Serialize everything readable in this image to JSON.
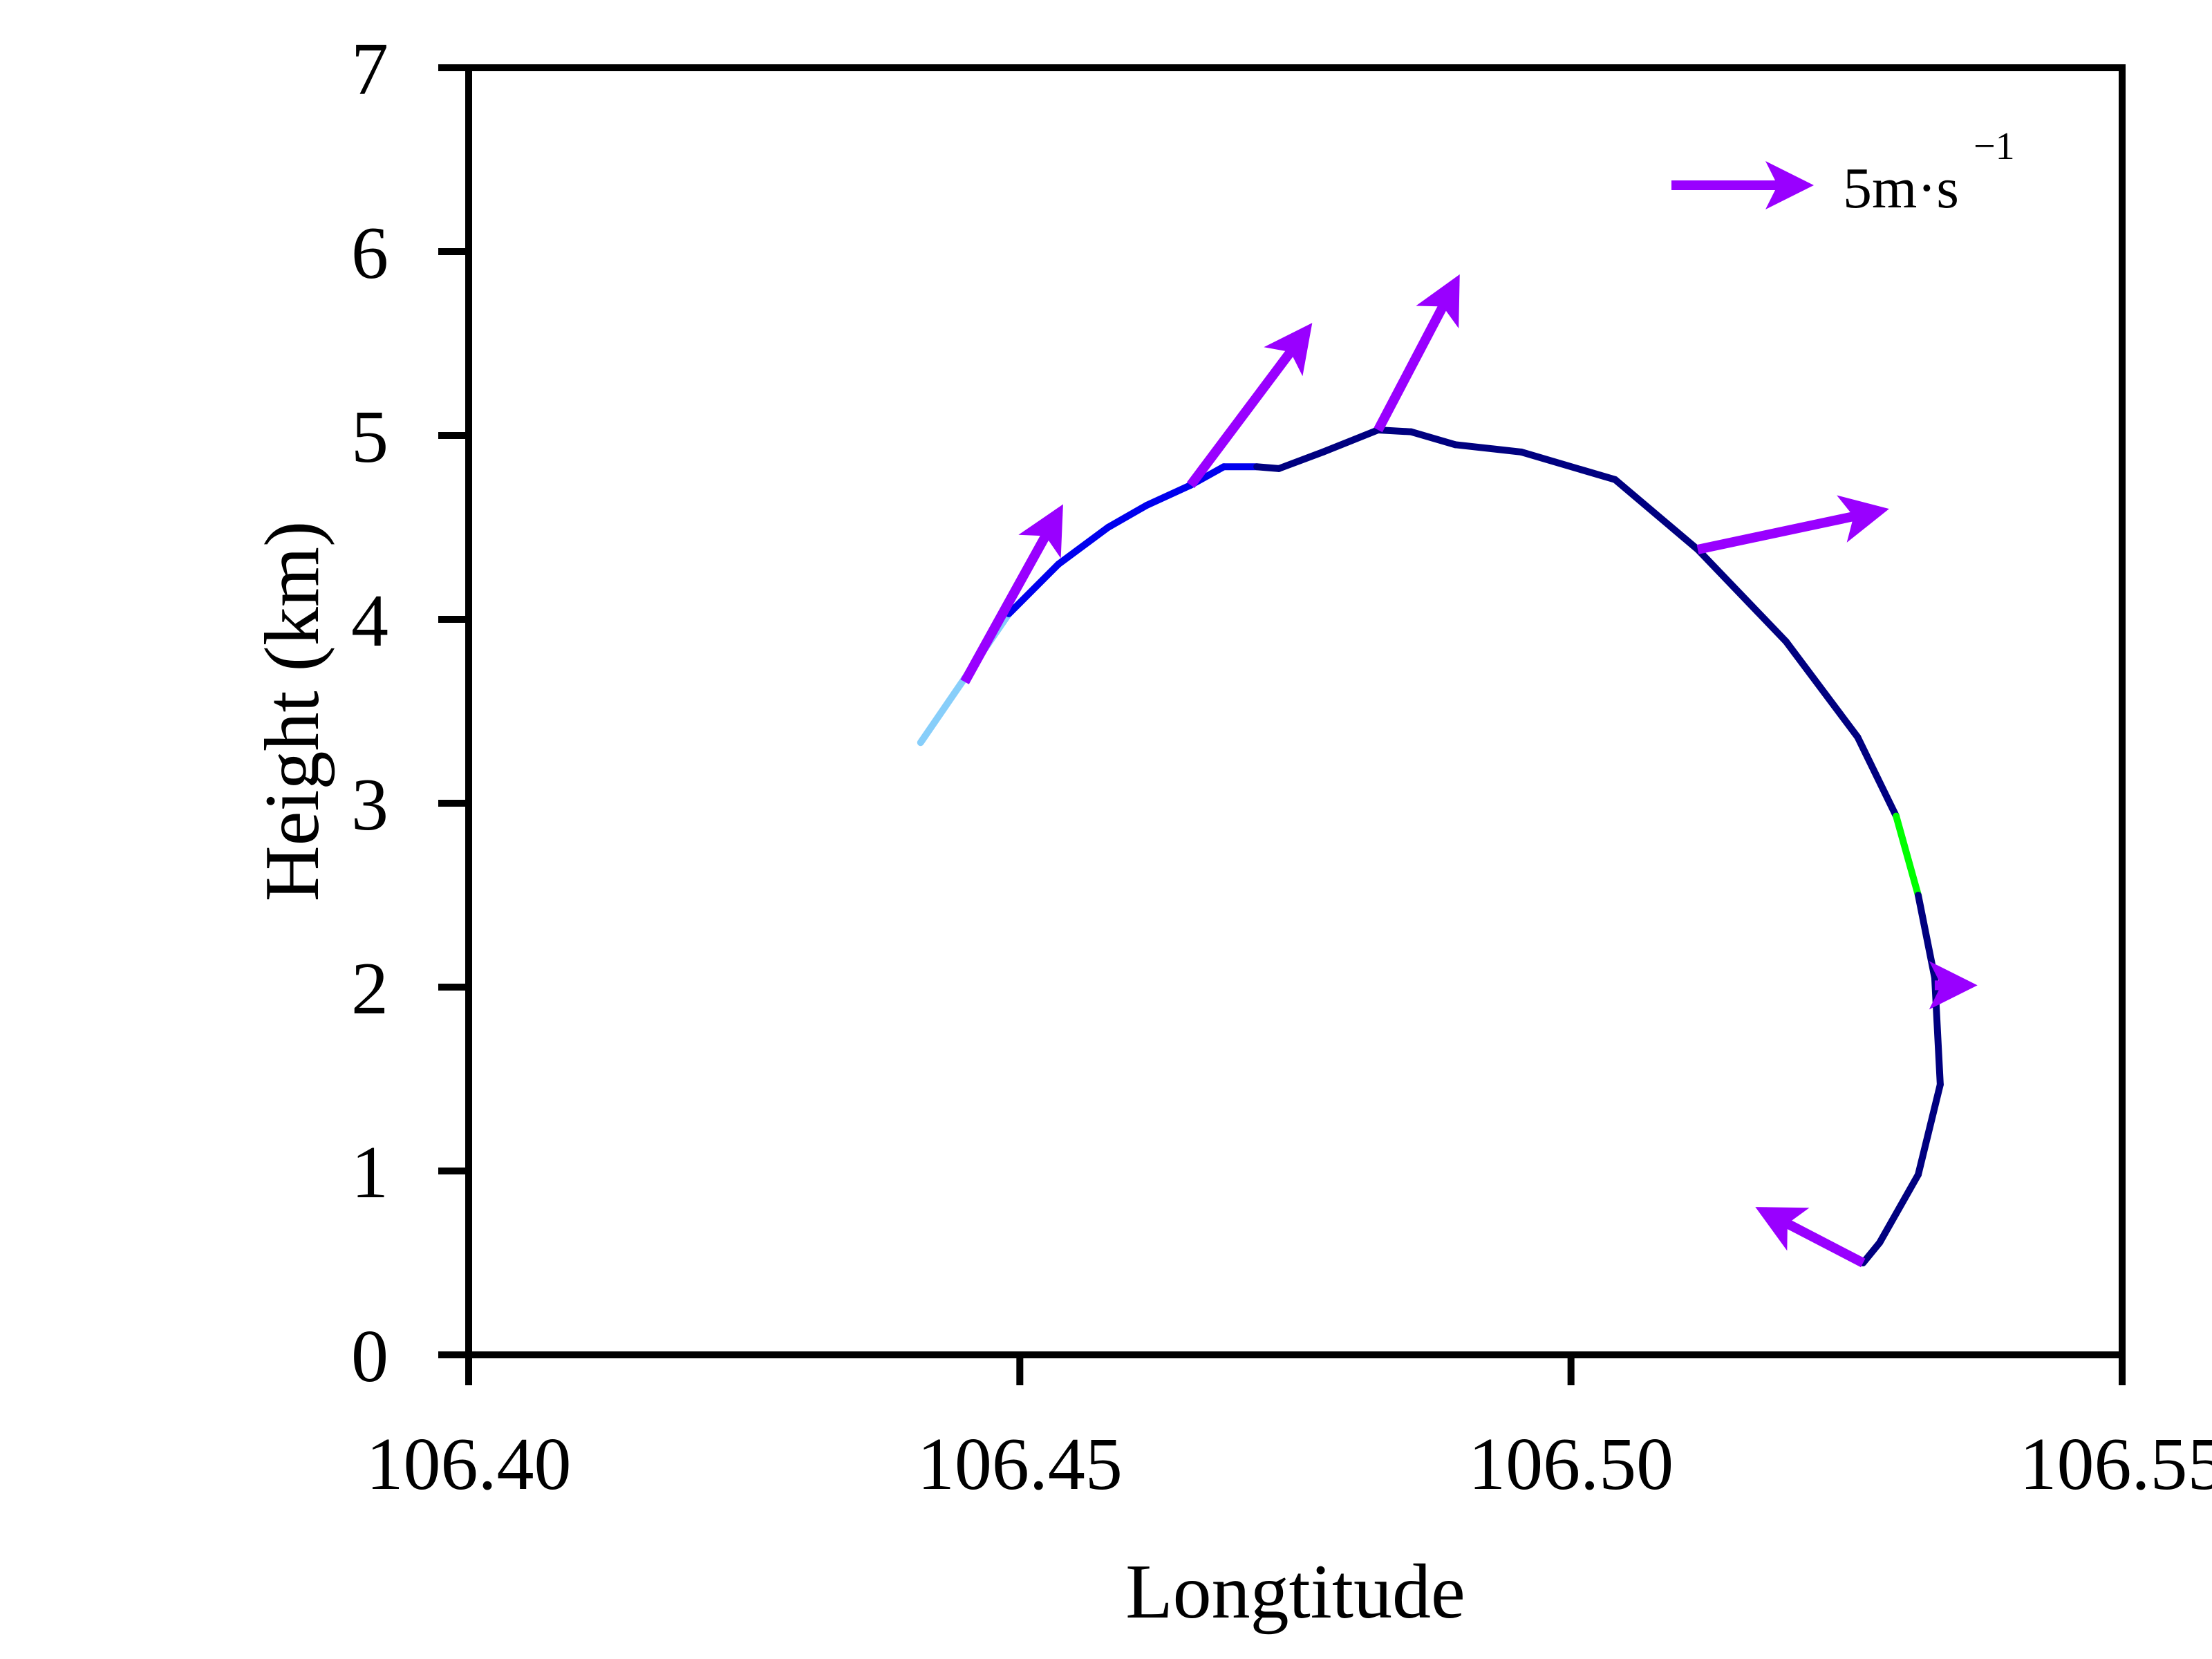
{
  "chart_data": {
    "type": "line",
    "title": "",
    "xlabel": "Longtitude",
    "ylabel": "Height (km)",
    "xlim": [
      106.4,
      106.55
    ],
    "ylim": [
      0,
      7
    ],
    "x_ticks": [
      "106.40",
      "106.45",
      "106.50",
      "106.55"
    ],
    "y_ticks": [
      "0",
      "1",
      "2",
      "3",
      "4",
      "5",
      "6",
      "7"
    ],
    "grid": false,
    "legend": {
      "position": "top-right",
      "label": "5m·s",
      "superscript": "−1",
      "arrow_color": "#9900ff"
    },
    "trajectory": [
      {
        "x": 106.441,
        "y": 3.33,
        "color": "#87cefa"
      },
      {
        "x": 106.445,
        "y": 3.68,
        "color": "#87cefa"
      },
      {
        "x": 106.449,
        "y": 4.03,
        "color": "#87cefa"
      },
      {
        "x": 106.4535,
        "y": 4.3,
        "color": "#0000ee"
      },
      {
        "x": 106.458,
        "y": 4.5,
        "color": "#0000ee"
      },
      {
        "x": 106.4615,
        "y": 4.62,
        "color": "#0000ee"
      },
      {
        "x": 106.4655,
        "y": 4.73,
        "color": "#0000ee"
      },
      {
        "x": 106.4685,
        "y": 4.83,
        "color": "#0000ee"
      },
      {
        "x": 106.4715,
        "y": 4.83,
        "color": "#0000ee"
      },
      {
        "x": 106.4735,
        "y": 4.82,
        "color": "#000080"
      },
      {
        "x": 106.4775,
        "y": 4.91,
        "color": "#000080"
      },
      {
        "x": 106.4825,
        "y": 5.03,
        "color": "#000080"
      },
      {
        "x": 106.4855,
        "y": 5.02,
        "color": "#000080"
      },
      {
        "x": 106.4895,
        "y": 4.95,
        "color": "#000080"
      },
      {
        "x": 106.4955,
        "y": 4.91,
        "color": "#000080"
      },
      {
        "x": 106.504,
        "y": 4.76,
        "color": "#000080"
      },
      {
        "x": 106.5115,
        "y": 4.38,
        "color": "#000080"
      },
      {
        "x": 106.5195,
        "y": 3.88,
        "color": "#000080"
      },
      {
        "x": 106.526,
        "y": 3.36,
        "color": "#000080"
      },
      {
        "x": 106.5295,
        "y": 2.93,
        "color": "#000080"
      },
      {
        "x": 106.5315,
        "y": 2.5,
        "color": "#00ff00"
      },
      {
        "x": 106.533,
        "y": 2.05,
        "color": "#000080"
      },
      {
        "x": 106.5335,
        "y": 1.47,
        "color": "#000080"
      },
      {
        "x": 106.5315,
        "y": 0.98,
        "color": "#000080"
      },
      {
        "x": 106.528,
        "y": 0.61,
        "color": "#000080"
      },
      {
        "x": 106.5265,
        "y": 0.5,
        "color": "#000080"
      }
    ],
    "wind_vectors": [
      {
        "x": 106.5265,
        "y": 0.5,
        "dx": -0.009,
        "dy": 0.28
      },
      {
        "x": 106.533,
        "y": 2.01,
        "dx": 0.003,
        "dy": 0.0
      },
      {
        "x": 106.5115,
        "y": 4.38,
        "dx": 0.0165,
        "dy": 0.21
      },
      {
        "x": 106.4825,
        "y": 5.03,
        "dx": 0.007,
        "dy": 0.8
      },
      {
        "x": 106.4655,
        "y": 4.73,
        "dx": 0.0105,
        "dy": 0.84
      },
      {
        "x": 106.445,
        "y": 3.66,
        "dx": 0.0085,
        "dy": 0.92
      }
    ]
  }
}
